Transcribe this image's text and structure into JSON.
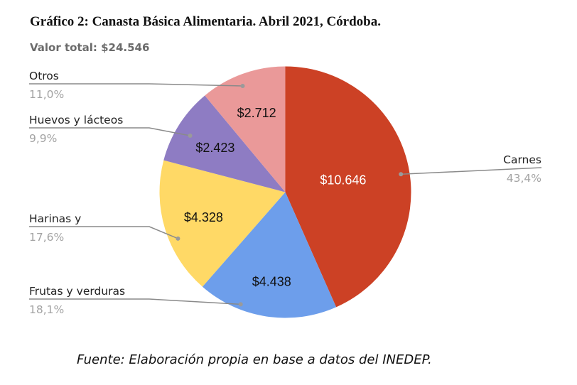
{
  "header": {
    "title": "Gráfico 2: Canasta Básica Alimentaria. Abril 2021, Córdoba.",
    "subtitle": "Valor total: $24.546"
  },
  "footer": {
    "source": "Fuente: Elaboración propia en base a datos del INEDEP."
  },
  "chart_data": {
    "type": "pie",
    "title": "Gráfico 2: Canasta Básica Alimentaria. Abril 2021, Córdoba.",
    "subtitle": "Valor total: $24.546",
    "start_angle": "top, clockwise",
    "categories": [
      "Carnes",
      "Frutas y verduras",
      "Harinas y",
      "Huevos y lácteos",
      "Otros"
    ],
    "values": [
      10646,
      4438,
      4328,
      2423,
      2712
    ],
    "value_labels": [
      "$10.646",
      "$4.438",
      "$4.328",
      "$2.423",
      "$2.712"
    ],
    "percentages": [
      "43,4%",
      "18,1%",
      "17,6%",
      "9,9%",
      "11,0%"
    ],
    "colors": [
      "#cc4125",
      "#6d9eeb",
      "#ffd966",
      "#8e7cc3",
      "#ea9999"
    ],
    "value_label_colors": [
      "#ffffff",
      "#111111",
      "#111111",
      "#111111",
      "#111111"
    ],
    "legend_position": "labeled leader lines"
  }
}
